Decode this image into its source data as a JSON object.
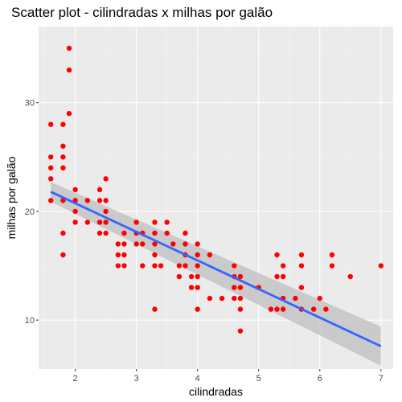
{
  "chart_data": {
    "type": "scatter",
    "title": "Scatter plot - cilindradas x milhas por galão",
    "xlabel": "cilindradas",
    "ylabel": "milhas por galão",
    "xlim": [
      1.4,
      7.2
    ],
    "ylim": [
      5.5,
      37
    ],
    "xticks": [
      "2",
      "3",
      "4",
      "5",
      "6",
      "7"
    ],
    "yticks": [
      "10",
      "20",
      "30"
    ],
    "grid": true,
    "colors": {
      "panel": "#ebebeb",
      "grid_major": "#ffffff",
      "point": "#ff0000",
      "line": "#3366ff",
      "band": "#bfbfbf"
    },
    "points": [
      {
        "x": 1.6,
        "y": 28
      },
      {
        "x": 1.6,
        "y": 25
      },
      {
        "x": 1.6,
        "y": 24
      },
      {
        "x": 1.6,
        "y": 23
      },
      {
        "x": 1.6,
        "y": 21
      },
      {
        "x": 1.8,
        "y": 28
      },
      {
        "x": 1.8,
        "y": 26
      },
      {
        "x": 1.8,
        "y": 25
      },
      {
        "x": 1.8,
        "y": 24
      },
      {
        "x": 1.8,
        "y": 21
      },
      {
        "x": 1.8,
        "y": 18
      },
      {
        "x": 1.8,
        "y": 16
      },
      {
        "x": 1.9,
        "y": 35
      },
      {
        "x": 1.9,
        "y": 33
      },
      {
        "x": 1.9,
        "y": 29
      },
      {
        "x": 2.0,
        "y": 22
      },
      {
        "x": 2.0,
        "y": 21
      },
      {
        "x": 2.0,
        "y": 20
      },
      {
        "x": 2.0,
        "y": 19
      },
      {
        "x": 2.2,
        "y": 21
      },
      {
        "x": 2.2,
        "y": 19
      },
      {
        "x": 2.4,
        "y": 22
      },
      {
        "x": 2.4,
        "y": 21
      },
      {
        "x": 2.4,
        "y": 19
      },
      {
        "x": 2.4,
        "y": 18
      },
      {
        "x": 2.5,
        "y": 23
      },
      {
        "x": 2.5,
        "y": 21
      },
      {
        "x": 2.5,
        "y": 20
      },
      {
        "x": 2.5,
        "y": 19
      },
      {
        "x": 2.5,
        "y": 18
      },
      {
        "x": 2.7,
        "y": 17
      },
      {
        "x": 2.7,
        "y": 16
      },
      {
        "x": 2.7,
        "y": 15
      },
      {
        "x": 2.8,
        "y": 18
      },
      {
        "x": 2.8,
        "y": 17
      },
      {
        "x": 2.8,
        "y": 16
      },
      {
        "x": 2.8,
        "y": 15
      },
      {
        "x": 3.0,
        "y": 19
      },
      {
        "x": 3.0,
        "y": 18
      },
      {
        "x": 3.0,
        "y": 17
      },
      {
        "x": 3.1,
        "y": 18
      },
      {
        "x": 3.1,
        "y": 17
      },
      {
        "x": 3.1,
        "y": 15
      },
      {
        "x": 3.3,
        "y": 19
      },
      {
        "x": 3.3,
        "y": 18
      },
      {
        "x": 3.3,
        "y": 17
      },
      {
        "x": 3.3,
        "y": 16
      },
      {
        "x": 3.3,
        "y": 15
      },
      {
        "x": 3.3,
        "y": 11
      },
      {
        "x": 3.4,
        "y": 15
      },
      {
        "x": 3.5,
        "y": 19
      },
      {
        "x": 3.5,
        "y": 18
      },
      {
        "x": 3.6,
        "y": 17
      },
      {
        "x": 3.7,
        "y": 15
      },
      {
        "x": 3.7,
        "y": 14
      },
      {
        "x": 3.8,
        "y": 18
      },
      {
        "x": 3.8,
        "y": 17
      },
      {
        "x": 3.8,
        "y": 16
      },
      {
        "x": 3.8,
        "y": 15
      },
      {
        "x": 3.9,
        "y": 14
      },
      {
        "x": 3.9,
        "y": 13
      },
      {
        "x": 4.0,
        "y": 17
      },
      {
        "x": 4.0,
        "y": 16
      },
      {
        "x": 4.0,
        "y": 15
      },
      {
        "x": 4.0,
        "y": 14
      },
      {
        "x": 4.0,
        "y": 13
      },
      {
        "x": 4.0,
        "y": 11
      },
      {
        "x": 4.2,
        "y": 16
      },
      {
        "x": 4.2,
        "y": 12
      },
      {
        "x": 4.4,
        "y": 12
      },
      {
        "x": 4.6,
        "y": 15
      },
      {
        "x": 4.6,
        "y": 14
      },
      {
        "x": 4.6,
        "y": 13
      },
      {
        "x": 4.6,
        "y": 12
      },
      {
        "x": 4.7,
        "y": 14
      },
      {
        "x": 4.7,
        "y": 13
      },
      {
        "x": 4.7,
        "y": 12
      },
      {
        "x": 4.7,
        "y": 11
      },
      {
        "x": 4.7,
        "y": 9
      },
      {
        "x": 5.0,
        "y": 13
      },
      {
        "x": 5.2,
        "y": 11
      },
      {
        "x": 5.3,
        "y": 16
      },
      {
        "x": 5.3,
        "y": 14
      },
      {
        "x": 5.3,
        "y": 11
      },
      {
        "x": 5.4,
        "y": 15
      },
      {
        "x": 5.4,
        "y": 14
      },
      {
        "x": 5.4,
        "y": 12
      },
      {
        "x": 5.4,
        "y": 11
      },
      {
        "x": 5.6,
        "y": 12
      },
      {
        "x": 5.7,
        "y": 16
      },
      {
        "x": 5.7,
        "y": 15
      },
      {
        "x": 5.7,
        "y": 13
      },
      {
        "x": 5.7,
        "y": 11
      },
      {
        "x": 5.9,
        "y": 11
      },
      {
        "x": 6.0,
        "y": 12
      },
      {
        "x": 6.1,
        "y": 11
      },
      {
        "x": 6.2,
        "y": 16
      },
      {
        "x": 6.2,
        "y": 15
      },
      {
        "x": 6.5,
        "y": 14
      },
      {
        "x": 7.0,
        "y": 15
      }
    ],
    "trend": {
      "method": "linear",
      "x": [
        1.6,
        7.0
      ],
      "y": [
        21.8,
        7.6
      ],
      "band_upper": [
        22.7,
        9.4
      ],
      "band_lower": [
        20.9,
        5.8
      ]
    }
  }
}
